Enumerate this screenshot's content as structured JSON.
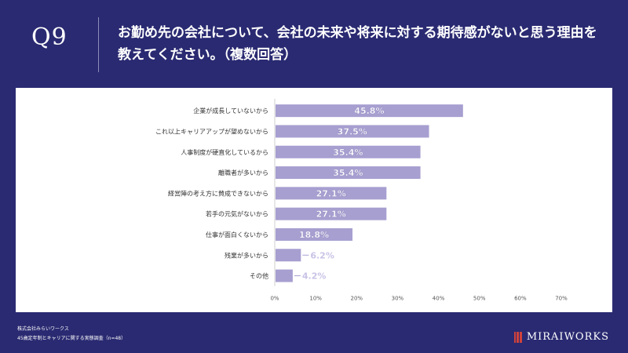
{
  "header": {
    "question": "Q9",
    "title": "お勤め先の会社について、会社の未来や将来に対する期待感がないと思う理由を教えてください。（複数回答）"
  },
  "footer": {
    "company": "株式会社みらいワークス",
    "survey": "45歳定年制とキャリアに関する実態調査（n=48）"
  },
  "brand": {
    "logo": "MIRAIWORKS",
    "logo_icon": "mw-bars-icon"
  },
  "colors": {
    "background": "#2a2a72",
    "bar": "#a79fd0",
    "accent": "#d0423b"
  },
  "chart_data": {
    "type": "bar",
    "orientation": "horizontal",
    "categories": [
      "企業が成長していないから",
      "これ以上キャリアアップが望めないから",
      "人事制度が硬直化しているから",
      "離職者が多いから",
      "経営陣の考え方に賛成できないから",
      "若手の元気がないから",
      "仕事が面白くないから",
      "残業が多いから",
      "その他"
    ],
    "values": [
      45.8,
      37.5,
      35.4,
      35.4,
      27.1,
      27.1,
      18.8,
      6.2,
      4.2
    ],
    "data_labels": [
      "45.8%",
      "37.5%",
      "35.4%",
      "35.4%",
      "27.1%",
      "27.1%",
      "18.8%",
      "6.2%",
      "4.2%"
    ],
    "xlim": [
      0,
      70
    ],
    "xticks": [
      0,
      10,
      20,
      30,
      40,
      50,
      60,
      70
    ],
    "xtick_labels": [
      "0%",
      "10%",
      "20%",
      "30%",
      "40%",
      "50%",
      "60%",
      "70%"
    ],
    "grid": false,
    "legend": "none"
  }
}
